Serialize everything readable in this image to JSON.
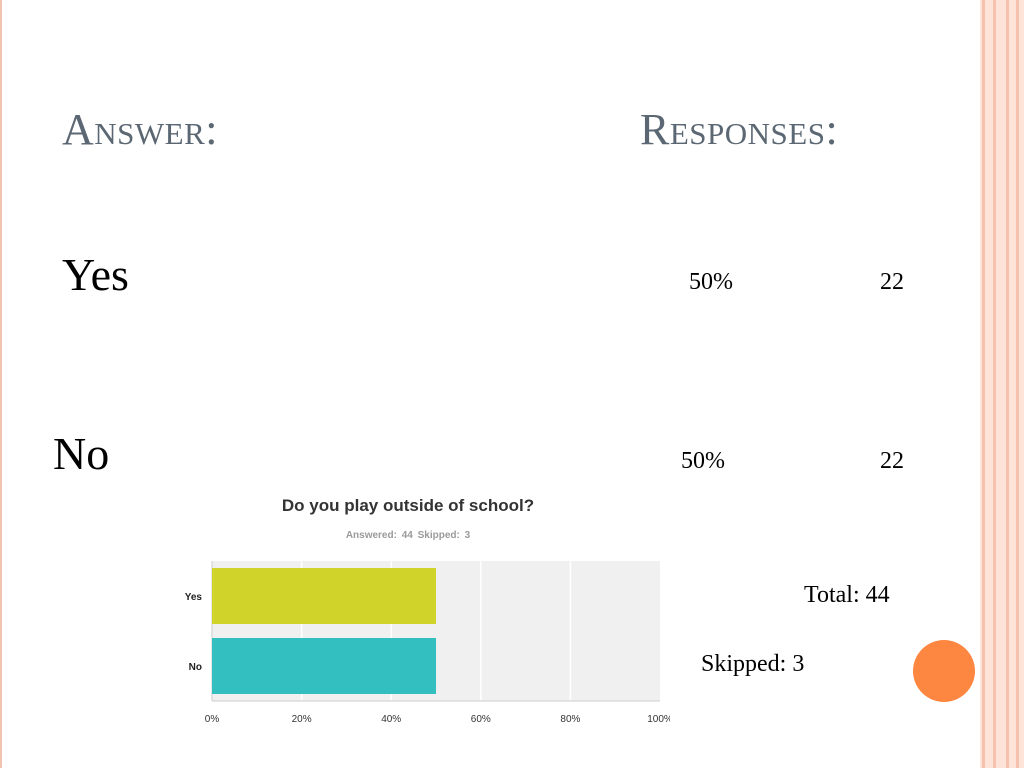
{
  "headers": {
    "answer": "Answer:",
    "responses": "Responses:"
  },
  "rows": [
    {
      "label": "Yes",
      "percent": "50%",
      "count": "22"
    },
    {
      "label": "No",
      "percent": "50%",
      "count": "22"
    }
  ],
  "summary": {
    "total": "Total:  44",
    "skipped": "Skipped:  3"
  },
  "colors": {
    "stripe": "#f6c2ae",
    "accent_dot": "#fd8641",
    "bar_yes": "#d0d42a",
    "bar_no": "#33bec0",
    "plot_bg": "#f0f0f0"
  },
  "chart_data": {
    "type": "bar",
    "orientation": "horizontal",
    "title": "Do you play outside of school?",
    "subtitle": "Answered: 44    Skipped: 3",
    "categories": [
      "Yes",
      "No"
    ],
    "values": [
      50,
      50
    ],
    "x_ticks": [
      "0%",
      "20%",
      "40%",
      "60%",
      "80%",
      "100%"
    ],
    "xlim": [
      0,
      100
    ],
    "grid": true
  }
}
